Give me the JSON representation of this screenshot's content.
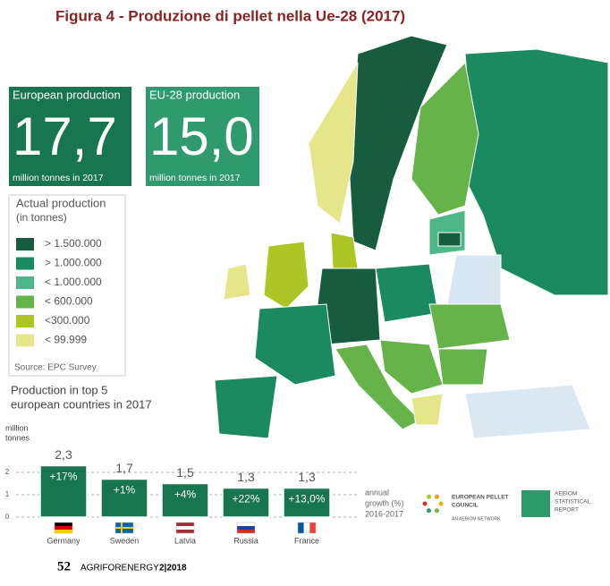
{
  "header": {
    "title": "Figura 4 - Produzione di pellet nella Ue-28 (2017)"
  },
  "boxes": [
    {
      "label": "European production",
      "value": "17,7",
      "unit": "million tonnes in 2017",
      "color": "#17754f"
    },
    {
      "label": "EU-28 production",
      "value": "15,0",
      "unit": "million tonnes in 2017",
      "color": "#2f9a6c"
    }
  ],
  "legend": {
    "title_lines": [
      "Actual production",
      "(in tonnes)"
    ],
    "items": [
      {
        "label": "> 1.500.000",
        "color": "#175c3f"
      },
      {
        "label": "> 1.000.000",
        "color": "#1b8a60"
      },
      {
        "label": "< 1.000.000",
        "color": "#4db787"
      },
      {
        "label": "< 600.000",
        "color": "#66b34a"
      },
      {
        "label": "<300.000",
        "color": "#aec625"
      },
      {
        "label": "< 99.999",
        "color": "#e5e58a"
      }
    ],
    "source": "Source: EPC Survey"
  },
  "chart_data": {
    "type": "bar",
    "title_lines": [
      "Production in top 5",
      "european countries in 2017"
    ],
    "y_label_lines": [
      "million",
      "tonnes"
    ],
    "categories": [
      "Germany",
      "Sweden",
      "Latvia",
      "Russia",
      "France"
    ],
    "values": [
      2.3,
      1.7,
      1.5,
      1.3,
      1.3
    ],
    "value_labels": [
      "2,3",
      "1,7",
      "1,5",
      "1,3",
      "1,3"
    ],
    "growth_labels": [
      "+17%",
      "+1%",
      "+4%",
      "+22%",
      "+13,0%"
    ],
    "growth_note_lines": [
      "annual",
      "growth (%)",
      "2016-2017"
    ],
    "color": "#17754f",
    "ylim": [
      0,
      2.5
    ],
    "yticks": [
      0,
      1,
      2
    ],
    "grid": true
  },
  "logos": {
    "epc": [
      "EUROPEAN PELLET",
      "COUNCIL",
      "AN AEBIOM NETWORK"
    ],
    "aebiom": [
      "AEBIOM",
      "STATISTICAL",
      "REPORT"
    ]
  },
  "footer": {
    "page": "52",
    "magazine": "AGRIFORENERGY",
    "issue": "2|2018"
  }
}
